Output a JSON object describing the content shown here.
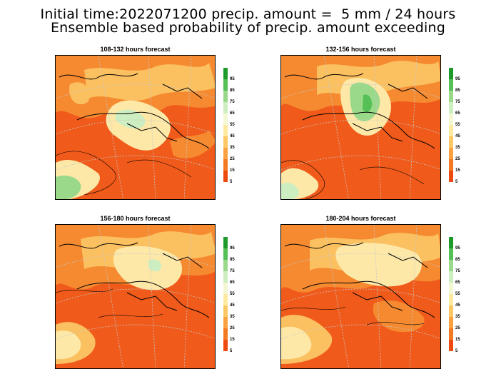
{
  "header": {
    "title_line1": "Initial time:2022071200 precip. amount =  5 mm / 24 hours",
    "title_line2": "Ensemble based probability of precip. amount exceeding"
  },
  "panels": [
    {
      "title": "108-132 hours forecast"
    },
    {
      "title": "132-156 hours forecast"
    },
    {
      "title": "156-180 hours forecast"
    },
    {
      "title": "180-204 hours forecast"
    }
  ],
  "colorbar": {
    "labels": [
      "95",
      "85",
      "75",
      "65",
      "55",
      "45",
      "35",
      "25",
      "15",
      "5"
    ],
    "colors": [
      "#1e9a2a",
      "#55c055",
      "#9ad98a",
      "#cdeec0",
      "#f4f7d4",
      "#fde9a0",
      "#fdc766",
      "#fba140",
      "#f47a22",
      "#ee4a10"
    ]
  },
  "colors": {
    "sea_base": "#f05a1a",
    "mid": "#f58a30",
    "light": "#fbc060",
    "pale": "#fde8a8",
    "green": "#9ad98a",
    "coast": "#000000",
    "grid": "#c8c8c8"
  }
}
